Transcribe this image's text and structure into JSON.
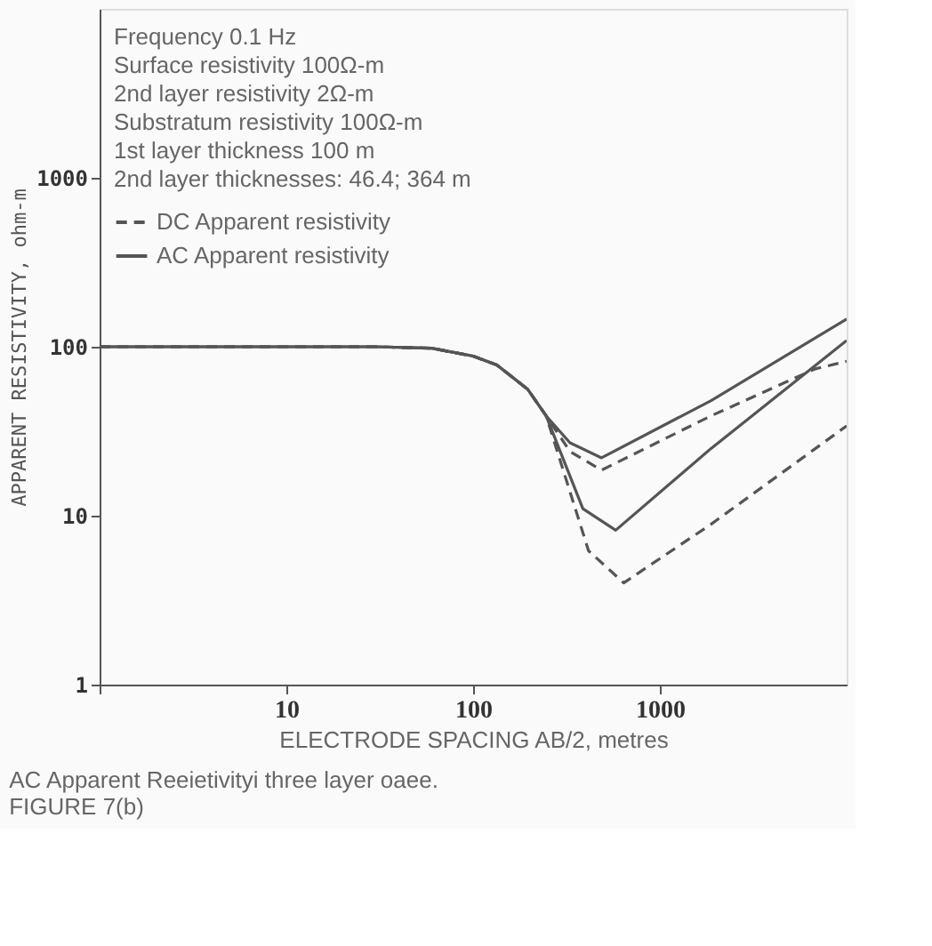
{
  "chart_data": {
    "type": "line",
    "xlabel": "ELECTRODE SPACING AB/2, metres",
    "ylabel": "APPARENT RESISTIVITY, ohm-m",
    "annotations": [
      "Frequency 0.1 Hz",
      "Surface resistivity 100Ω-m",
      "2nd layer resistivity 2Ω-m",
      "Substratum resistivity 100Ω-m",
      "1st layer thickness 100 m",
      "2nd layer thicknesses:  46.4;  364 m",
      "AC Apparent Reeietivityi three layer oaee.",
      "FIGURE 7(b)"
    ],
    "series": [
      {
        "name": "DC Apparent resistivity",
        "color": "#555555",
        "line_style": "dashed",
        "x": [
          1,
          10,
          30,
          60,
          100,
          134,
          196,
          246,
          330,
          487,
          1880,
          6800,
          10000
        ],
        "values": [
          100,
          100,
          100,
          98,
          88,
          78,
          56,
          39,
          24,
          18.6,
          39,
          74,
          82
        ]
      },
      {
        "name": "AC Apparent resistivity",
        "color": "#555555",
        "line_style": "solid",
        "x": [
          1,
          10,
          30,
          60,
          100,
          134,
          196,
          246,
          330,
          487,
          1880,
          10000
        ],
        "values": [
          100,
          100,
          100,
          98,
          88,
          78,
          56,
          39,
          27,
          22,
          48,
          146
        ]
      },
      {
        "color": "#555555",
        "line_style": "dashed",
        "x": [
          1,
          10,
          30,
          60,
          100,
          134,
          196,
          246,
          415,
          640,
          1880,
          10000
        ],
        "values": [
          100,
          100,
          100,
          98,
          88,
          78,
          56,
          39,
          6.2,
          4.0,
          8.9,
          34
        ]
      },
      {
        "color": "#555555",
        "line_style": "solid",
        "x": [
          1,
          10,
          30,
          60,
          100,
          134,
          196,
          246,
          387,
          580,
          1880,
          10000
        ],
        "values": [
          100,
          100,
          100,
          98,
          88,
          78,
          56,
          39,
          11,
          8.2,
          25,
          109
        ]
      }
    ],
    "xlim": [
      1,
      10000
    ],
    "ylim": [
      1,
      10000
    ],
    "log": "xy",
    "xticks": [
      {
        "value": 1,
        "label": null
      },
      10,
      100,
      1000
    ],
    "yticks": [
      1,
      10,
      100,
      1000
    ],
    "grid": false,
    "legend": "top left"
  }
}
